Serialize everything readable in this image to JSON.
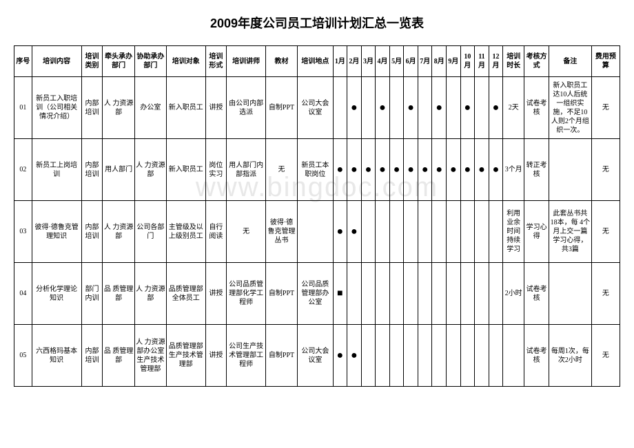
{
  "title": "2009年度公司员工培训计划汇总一览表",
  "watermark": "www.bingdoc.com",
  "columns": [
    {
      "key": "seq",
      "label": "序号",
      "width": "2.5%"
    },
    {
      "key": "content",
      "label": "培训内容",
      "width": "7%"
    },
    {
      "key": "category",
      "label": "培训类别",
      "width": "3%"
    },
    {
      "key": "lead_dept",
      "label": "牵头承办部门",
      "width": "4.5%"
    },
    {
      "key": "assist_dept",
      "label": "协助承办部门",
      "width": "4.5%"
    },
    {
      "key": "target",
      "label": "培训对象",
      "width": "5.5%"
    },
    {
      "key": "form",
      "label": "培训形式",
      "width": "3%"
    },
    {
      "key": "lecturer",
      "label": "培训讲师",
      "width": "5.5%"
    },
    {
      "key": "material",
      "label": "教材",
      "width": "4.5%"
    },
    {
      "key": "location",
      "label": "培训地点",
      "width": "5%"
    },
    {
      "key": "m1",
      "label": "1月",
      "width": "2%"
    },
    {
      "key": "m2",
      "label": "2月",
      "width": "2%"
    },
    {
      "key": "m3",
      "label": "3月",
      "width": "2%"
    },
    {
      "key": "m4",
      "label": "4月",
      "width": "2%"
    },
    {
      "key": "m5",
      "label": "5月",
      "width": "2%"
    },
    {
      "key": "m6",
      "label": "6月",
      "width": "2%"
    },
    {
      "key": "m7",
      "label": "7月",
      "width": "2%"
    },
    {
      "key": "m8",
      "label": "8月",
      "width": "2%"
    },
    {
      "key": "m9",
      "label": "9月",
      "width": "2%"
    },
    {
      "key": "m10",
      "label": "10月",
      "width": "2%"
    },
    {
      "key": "m11",
      "label": "11月",
      "width": "2%"
    },
    {
      "key": "m12",
      "label": "12月",
      "width": "2%"
    },
    {
      "key": "duration",
      "label": "培训时长",
      "width": "3%"
    },
    {
      "key": "assess",
      "label": "考核方式",
      "width": "3.5%"
    },
    {
      "key": "remark",
      "label": "备注",
      "width": "6%"
    },
    {
      "key": "budget",
      "label": "费用预算",
      "width": "4%"
    }
  ],
  "rows": [
    {
      "seq": "01",
      "content": "新员工入职培训（公司相关情况介绍）",
      "category": "内部培训",
      "lead_dept": "人 力资源部",
      "assist_dept": "办公室",
      "target": "新入职员工",
      "form": "讲授",
      "lecturer": "由公司内部选派",
      "material": "自制PPT",
      "location": "公司大会议室",
      "months": [
        "",
        "●",
        "",
        "●",
        "",
        "●",
        "",
        "●",
        "",
        "●",
        "",
        "●"
      ],
      "duration": "2天",
      "assess": "试卷考核",
      "remark": "新入职员工达10人后统一组织实施，不足10人则2个月组织一次。",
      "budget": "无"
    },
    {
      "seq": "02",
      "content": "新员工上岗培训",
      "category": "内部培训",
      "lead_dept": "用人部门",
      "assist_dept": "人 力资源部",
      "target": "新入职员工",
      "form": "岗位实习",
      "lecturer": "用人部门内部指派",
      "material": "无",
      "location": "新员工本职岗位",
      "months": [
        "●",
        "●",
        "●",
        "●",
        "●",
        "●",
        "●",
        "●",
        "●",
        "●",
        "●",
        "●"
      ],
      "duration": "3个月",
      "assess": "转正考核",
      "remark": "",
      "budget": "无"
    },
    {
      "seq": "03",
      "content": "彼得·德鲁克管理知识",
      "category": "内部培训",
      "lead_dept": "人 力资源部",
      "assist_dept": "公司各部门",
      "target": "主管级及以上级别员工",
      "form": "自行阅读",
      "lecturer": "无",
      "material": "彼得·德鲁克管理丛书",
      "location": "",
      "months": [
        "●",
        "●",
        "",
        "",
        "",
        "",
        "",
        "",
        "",
        "",
        "",
        ""
      ],
      "duration": "利用业余时间持续学习",
      "assess": "学习心得",
      "remark": "此套丛书共18本，每    4个月上交一篇学习心得，共3篇",
      "budget": "无"
    },
    {
      "seq": "04",
      "content": "分析化学理论知识",
      "category": "部门内训",
      "lead_dept": "品 质管理部",
      "assist_dept": "人 力资源部",
      "target": "品质管理部全体员工",
      "form": "讲授",
      "lecturer": "公司品质管理部化学工程师",
      "material": "自制PPT",
      "location": "公司品质管理部办公室",
      "months": [
        "■",
        "",
        "",
        "",
        "",
        "",
        "",
        "",
        "",
        "",
        "",
        ""
      ],
      "duration": "2小时",
      "assess": "试卷考核",
      "remark": "",
      "budget": "无"
    },
    {
      "seq": "05",
      "content": "六西格玛基本知识",
      "category": "内部培训",
      "lead_dept": "品 质管理部",
      "assist_dept": "人 力资源部办公室生产技术管理部",
      "target": "品质管理部生产技术管理部",
      "form": "讲授",
      "lecturer": "公司生产技术管理部工程师",
      "material": "自制PPT",
      "location": "公司大会议室",
      "months": [
        "●",
        "●",
        "",
        "",
        "",
        "",
        "",
        "",
        "",
        "",
        "",
        ""
      ],
      "duration": "",
      "assess": "试卷考核",
      "remark": "每周1次，每次2小时",
      "budget": "无"
    }
  ],
  "style": {
    "dot_color": "#000000",
    "border_color": "#000000",
    "background": "#ffffff"
  }
}
